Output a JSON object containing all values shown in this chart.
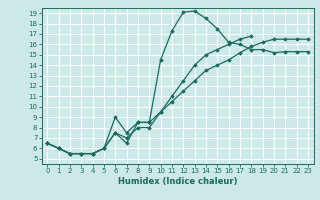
{
  "xlabel": "Humidex (Indice chaleur)",
  "bg_color": "#cce8e8",
  "line_color": "#1a6b5a",
  "grid_color": "#ffffff",
  "xlim": [
    -0.5,
    23.5
  ],
  "ylim": [
    4.5,
    19.5
  ],
  "xticks": [
    0,
    1,
    2,
    3,
    4,
    5,
    6,
    7,
    8,
    9,
    10,
    11,
    12,
    13,
    14,
    15,
    16,
    17,
    18,
    19,
    20,
    21,
    22,
    23
  ],
  "yticks": [
    5,
    6,
    7,
    8,
    9,
    10,
    11,
    12,
    13,
    14,
    15,
    16,
    17,
    18,
    19
  ],
  "series": [
    {
      "x": [
        0,
        1,
        2,
        3,
        4,
        5,
        6,
        7,
        8,
        9,
        10,
        11,
        12,
        13,
        14,
        15,
        16,
        17,
        18,
        19,
        20,
        21,
        22,
        23
      ],
      "y": [
        6.5,
        6.0,
        5.5,
        5.5,
        5.5,
        6.0,
        7.5,
        6.5,
        8.5,
        8.5,
        14.5,
        17.3,
        19.1,
        19.2,
        18.5,
        17.5,
        16.2,
        16.0,
        15.5,
        15.5,
        15.2,
        15.3,
        15.3,
        15.3
      ]
    },
    {
      "x": [
        0,
        1,
        2,
        3,
        4,
        5,
        6,
        7,
        8,
        9,
        10,
        11,
        12,
        13,
        14,
        15,
        16,
        17,
        18
      ],
      "y": [
        6.5,
        6.0,
        5.5,
        5.5,
        5.5,
        6.0,
        9.0,
        7.5,
        8.5,
        8.5,
        9.5,
        11.0,
        12.5,
        14.0,
        15.0,
        15.5,
        16.0,
        16.5,
        16.8
      ]
    },
    {
      "x": [
        0,
        1,
        2,
        3,
        4,
        5,
        6,
        7,
        8,
        9,
        10,
        11,
        12,
        13,
        14,
        15,
        16,
        17,
        18,
        19,
        20,
        21,
        22,
        23
      ],
      "y": [
        6.5,
        6.0,
        5.5,
        5.5,
        5.5,
        6.0,
        7.5,
        7.0,
        8.0,
        8.0,
        9.5,
        10.5,
        11.5,
        12.5,
        13.5,
        14.0,
        14.5,
        15.2,
        15.8,
        16.2,
        16.5,
        16.5,
        16.5,
        16.5
      ]
    }
  ]
}
